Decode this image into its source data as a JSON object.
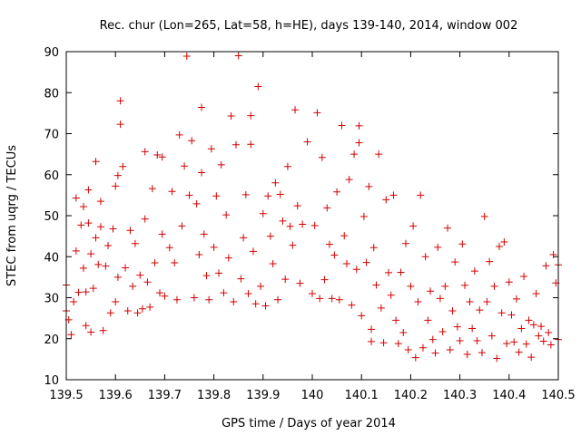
{
  "chart_data": {
    "type": "scatter",
    "title": "Rec. chur (Lon=265, Lat=58, h=HE), days 139-140, 2014, window 002",
    "xlabel": "GPS time / Days of year 2014",
    "ylabel": "STEC from uqrg / TECUs",
    "xlim": [
      139.5,
      140.5
    ],
    "ylim": [
      10,
      90
    ],
    "xticks": [
      139.5,
      139.6,
      139.7,
      139.8,
      139.9,
      140.0,
      140.1,
      140.2,
      140.3,
      140.4,
      140.5
    ],
    "xtick_labels": [
      "139.5",
      "139.6",
      "139.7",
      "139.8",
      "139.9",
      "140",
      "140.1",
      "140.2",
      "140.3",
      "140.4",
      "140.5"
    ],
    "yticks": [
      10,
      20,
      30,
      40,
      50,
      60,
      70,
      80,
      90
    ],
    "ytick_labels": [
      "10",
      "20",
      "30",
      "40",
      "50",
      "60",
      "70",
      "80",
      "90"
    ],
    "grid": false,
    "marker": "plus",
    "color": "#d40000",
    "points": [
      [
        139.5,
        33.1
      ],
      [
        139.5,
        26.8
      ],
      [
        139.505,
        24.6
      ],
      [
        139.51,
        21.0
      ],
      [
        139.515,
        29.0
      ],
      [
        139.52,
        41.4
      ],
      [
        139.52,
        54.3
      ],
      [
        139.525,
        31.3
      ],
      [
        139.53,
        47.7
      ],
      [
        139.535,
        37.2
      ],
      [
        139.535,
        52.2
      ],
      [
        139.54,
        31.4
      ],
      [
        139.54,
        23.2
      ],
      [
        139.545,
        48.2
      ],
      [
        139.545,
        56.3
      ],
      [
        139.55,
        40.7
      ],
      [
        139.55,
        21.6
      ],
      [
        139.555,
        32.3
      ],
      [
        139.56,
        63.2
      ],
      [
        139.56,
        44.6
      ],
      [
        139.565,
        38.1
      ],
      [
        139.57,
        47.3
      ],
      [
        139.57,
        53.5
      ],
      [
        139.575,
        22.0
      ],
      [
        139.58,
        37.7
      ],
      [
        139.585,
        42.7
      ],
      [
        139.59,
        26.3
      ],
      [
        139.595,
        46.8
      ],
      [
        139.6,
        29.0
      ],
      [
        139.6,
        57.2
      ],
      [
        139.605,
        59.8
      ],
      [
        139.605,
        35.0
      ],
      [
        139.61,
        72.3
      ],
      [
        139.61,
        78.0
      ],
      [
        139.615,
        62.0
      ],
      [
        139.62,
        37.3
      ],
      [
        139.625,
        26.8
      ],
      [
        139.63,
        46.4
      ],
      [
        139.635,
        32.8
      ],
      [
        139.64,
        43.2
      ],
      [
        139.645,
        26.3
      ],
      [
        139.65,
        35.5
      ],
      [
        139.655,
        27.3
      ],
      [
        139.66,
        49.2
      ],
      [
        139.66,
        65.6
      ],
      [
        139.665,
        33.8
      ],
      [
        139.67,
        27.7
      ],
      [
        139.675,
        56.6
      ],
      [
        139.68,
        38.5
      ],
      [
        139.685,
        64.8
      ],
      [
        139.69,
        31.2
      ],
      [
        139.695,
        45.5
      ],
      [
        139.695,
        64.3
      ],
      [
        139.7,
        30.4
      ],
      [
        139.71,
        42.2
      ],
      [
        139.715,
        55.9
      ],
      [
        139.72,
        38.5
      ],
      [
        139.725,
        29.5
      ],
      [
        139.73,
        69.7
      ],
      [
        139.735,
        47.5
      ],
      [
        139.74,
        62.1
      ],
      [
        139.745,
        88.9
      ],
      [
        139.75,
        55.0
      ],
      [
        139.755,
        68.3
      ],
      [
        139.76,
        30.0
      ],
      [
        139.765,
        52.9
      ],
      [
        139.77,
        40.5
      ],
      [
        139.775,
        60.5
      ],
      [
        139.775,
        76.4
      ],
      [
        139.78,
        45.5
      ],
      [
        139.785,
        35.4
      ],
      [
        139.79,
        29.5
      ],
      [
        139.795,
        66.3
      ],
      [
        139.8,
        42.3
      ],
      [
        139.805,
        54.8
      ],
      [
        139.81,
        36.0
      ],
      [
        139.815,
        62.4
      ],
      [
        139.82,
        31.2
      ],
      [
        139.825,
        50.2
      ],
      [
        139.83,
        39.7
      ],
      [
        139.835,
        74.3
      ],
      [
        139.84,
        29.0
      ],
      [
        139.845,
        67.3
      ],
      [
        139.85,
        89.0
      ],
      [
        139.855,
        34.6
      ],
      [
        139.86,
        44.6
      ],
      [
        139.865,
        55.1
      ],
      [
        139.87,
        31.0
      ],
      [
        139.875,
        74.4
      ],
      [
        139.875,
        67.4
      ],
      [
        139.88,
        41.3
      ],
      [
        139.885,
        28.5
      ],
      [
        139.89,
        81.5
      ],
      [
        139.895,
        32.8
      ],
      [
        139.9,
        50.5
      ],
      [
        139.905,
        28.0
      ],
      [
        139.91,
        54.8
      ],
      [
        139.915,
        45.0
      ],
      [
        139.92,
        38.3
      ],
      [
        139.925,
        58.0
      ],
      [
        139.93,
        29.5
      ],
      [
        139.935,
        55.2
      ],
      [
        139.94,
        48.7
      ],
      [
        139.945,
        34.5
      ],
      [
        139.95,
        62.0
      ],
      [
        139.955,
        47.4
      ],
      [
        139.96,
        42.8
      ],
      [
        139.965,
        75.8
      ],
      [
        139.97,
        52.4
      ],
      [
        139.975,
        33.5
      ],
      [
        139.98,
        47.9
      ],
      [
        139.99,
        68.0
      ],
      [
        140.0,
        31.0
      ],
      [
        140.005,
        47.6
      ],
      [
        140.01,
        75.1
      ],
      [
        140.015,
        29.8
      ],
      [
        140.02,
        64.2
      ],
      [
        140.025,
        34.4
      ],
      [
        140.03,
        51.9
      ],
      [
        140.035,
        43.0
      ],
      [
        140.04,
        29.8
      ],
      [
        140.045,
        40.4
      ],
      [
        140.05,
        55.8
      ],
      [
        140.055,
        29.5
      ],
      [
        140.06,
        72.0
      ],
      [
        140.065,
        45.1
      ],
      [
        140.07,
        38.3
      ],
      [
        140.075,
        58.8
      ],
      [
        140.08,
        28.2
      ],
      [
        140.085,
        65.0
      ],
      [
        140.09,
        36.9
      ],
      [
        140.095,
        71.9
      ],
      [
        140.095,
        67.8
      ],
      [
        140.1,
        25.6
      ],
      [
        140.105,
        49.8
      ],
      [
        140.11,
        38.6
      ],
      [
        140.115,
        57.1
      ],
      [
        140.12,
        22.3
      ],
      [
        140.12,
        19.3
      ],
      [
        140.125,
        42.2
      ],
      [
        140.13,
        33.1
      ],
      [
        140.135,
        65.0
      ],
      [
        140.14,
        27.5
      ],
      [
        140.145,
        19.0
      ],
      [
        140.15,
        53.9
      ],
      [
        140.155,
        36.1
      ],
      [
        140.16,
        30.6
      ],
      [
        140.165,
        55.0
      ],
      [
        140.17,
        24.5
      ],
      [
        140.175,
        18.8
      ],
      [
        140.18,
        36.2
      ],
      [
        140.185,
        21.5
      ],
      [
        140.19,
        43.2
      ],
      [
        140.195,
        17.3
      ],
      [
        140.2,
        32.8
      ],
      [
        140.205,
        47.5
      ],
      [
        140.21,
        15.4
      ],
      [
        140.215,
        29.0
      ],
      [
        140.22,
        55.0
      ],
      [
        140.225,
        17.8
      ],
      [
        140.23,
        40.0
      ],
      [
        140.235,
        24.5
      ],
      [
        140.24,
        31.6
      ],
      [
        140.245,
        19.8
      ],
      [
        140.25,
        16.5
      ],
      [
        140.255,
        42.3
      ],
      [
        140.26,
        29.8
      ],
      [
        140.265,
        21.7
      ],
      [
        140.27,
        32.8
      ],
      [
        140.275,
        47.0
      ],
      [
        140.28,
        17.3
      ],
      [
        140.285,
        26.8
      ],
      [
        140.29,
        38.7
      ],
      [
        140.295,
        22.9
      ],
      [
        140.3,
        19.5
      ],
      [
        140.305,
        43.1
      ],
      [
        140.31,
        33.0
      ],
      [
        140.315,
        16.2
      ],
      [
        140.32,
        29.0
      ],
      [
        140.325,
        22.5
      ],
      [
        140.33,
        36.5
      ],
      [
        140.335,
        19.5
      ],
      [
        140.34,
        27.0
      ],
      [
        140.345,
        16.6
      ],
      [
        140.35,
        49.8
      ],
      [
        140.355,
        29.0
      ],
      [
        140.36,
        38.8
      ],
      [
        140.365,
        20.7
      ],
      [
        140.37,
        32.8
      ],
      [
        140.375,
        15.2
      ],
      [
        140.38,
        42.5
      ],
      [
        140.385,
        26.3
      ],
      [
        140.39,
        43.6
      ],
      [
        140.395,
        18.8
      ],
      [
        140.4,
        33.8
      ],
      [
        140.405,
        25.8
      ],
      [
        140.41,
        19.2
      ],
      [
        140.415,
        29.7
      ],
      [
        140.42,
        16.7
      ],
      [
        140.425,
        22.5
      ],
      [
        140.43,
        35.2
      ],
      [
        140.435,
        18.7
      ],
      [
        140.44,
        24.5
      ],
      [
        140.445,
        15.5
      ],
      [
        140.45,
        23.4
      ],
      [
        140.455,
        31.0
      ],
      [
        140.46,
        20.7
      ],
      [
        140.465,
        23.0
      ],
      [
        140.47,
        19.4
      ],
      [
        140.475,
        37.8
      ],
      [
        140.48,
        21.5
      ],
      [
        140.485,
        18.5
      ],
      [
        140.49,
        40.5
      ],
      [
        140.495,
        33.6
      ],
      [
        140.5,
        19.8
      ],
      [
        140.5,
        38.0
      ]
    ]
  }
}
